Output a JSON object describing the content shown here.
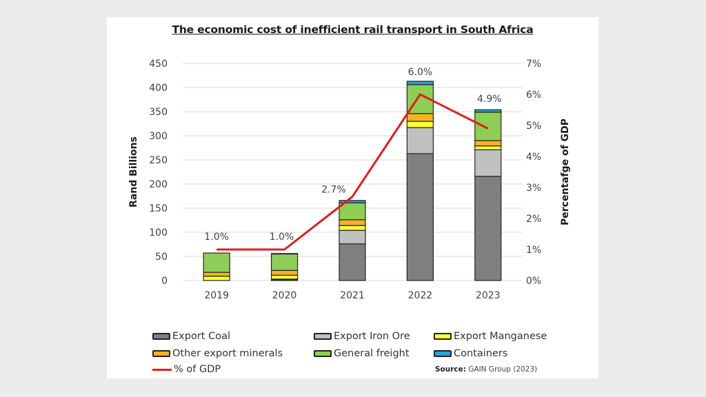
{
  "chart_data": {
    "type": "bar",
    "subtype": "stacked-bar-with-line",
    "title": "The economic cost of inefficient rail transport in South Africa",
    "categories": [
      "2019",
      "2020",
      "2021",
      "2022",
      "2023"
    ],
    "ylabel": "Rand Billions",
    "y2label": "Percentafge of GDP",
    "ylim": [
      0,
      450
    ],
    "y_ticks": [
      "0",
      "50",
      "100",
      "150",
      "200",
      "250",
      "300",
      "350",
      "400",
      "450"
    ],
    "y2lim": [
      0,
      7
    ],
    "y2_ticks": [
      "0%",
      "1%",
      "2%",
      "3%",
      "4%",
      "5%",
      "6%",
      "7%"
    ],
    "grid": true,
    "legend_position": "bottom",
    "series": [
      {
        "name": "Export Coal",
        "color": "#7f7f7f",
        "values": [
          0,
          2,
          76,
          263,
          216
        ]
      },
      {
        "name": "Export Iron Ore",
        "color": "#c0c0c0",
        "values": [
          0,
          1,
          28,
          54,
          55
        ]
      },
      {
        "name": "Export Manganese",
        "color": "#ffff33",
        "values": [
          9,
          8,
          10,
          13,
          8
        ]
      },
      {
        "name": "Other export minerals",
        "color": "#f5b324",
        "values": [
          8,
          10,
          12,
          16,
          11
        ]
      },
      {
        "name": "General freight",
        "color": "#8fce55",
        "values": [
          40,
          34,
          35,
          60,
          59
        ]
      },
      {
        "name": "Containers",
        "color": "#2e9fd8",
        "values": [
          0,
          1,
          5,
          7,
          5
        ]
      }
    ],
    "line_series": {
      "name": "% of GDP",
      "color": "#e31b1b",
      "axis": "secondary",
      "values": [
        1.0,
        1.0,
        2.7,
        6.0,
        4.9
      ],
      "labels": [
        "1.0%",
        "1.0%",
        "2.7%",
        "6.0%",
        "4.9%"
      ]
    },
    "source_label": "Source:",
    "source_text": "GAIN Group (2023)"
  }
}
